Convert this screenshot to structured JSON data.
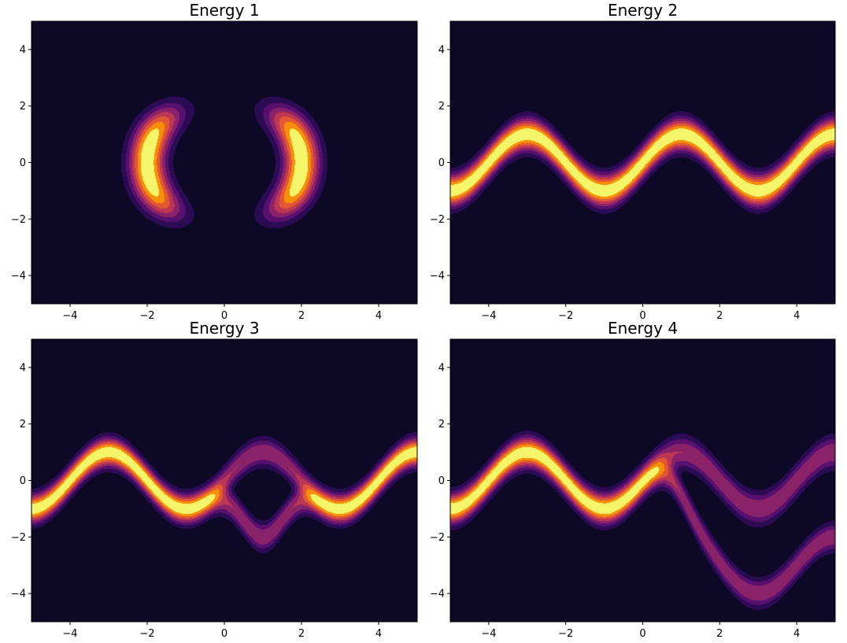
{
  "chart_data": [
    {
      "type": "contour",
      "title": "Energy 1",
      "xlabel": "",
      "ylabel": "",
      "xlim": [
        -5,
        5
      ],
      "ylim": [
        -5,
        5
      ],
      "x_ticks": [
        -4,
        -2,
        0,
        2,
        4
      ],
      "y_ticks": [
        -4,
        -2,
        0,
        2,
        4
      ],
      "grid": false,
      "colormap": "inferno",
      "levels": 8
    },
    {
      "type": "contour",
      "title": "Energy 2",
      "xlabel": "",
      "ylabel": "",
      "xlim": [
        -5,
        5
      ],
      "ylim": [
        -5,
        5
      ],
      "x_ticks": [
        -4,
        -2,
        0,
        2,
        4
      ],
      "y_ticks": [
        -4,
        -2,
        0,
        2,
        4
      ],
      "grid": false,
      "colormap": "inferno",
      "levels": 8
    },
    {
      "type": "contour",
      "title": "Energy 3",
      "xlabel": "",
      "ylabel": "",
      "xlim": [
        -5,
        5
      ],
      "ylim": [
        -5,
        5
      ],
      "x_ticks": [
        -4,
        -2,
        0,
        2,
        4
      ],
      "y_ticks": [
        -4,
        -2,
        0,
        2,
        4
      ],
      "grid": false,
      "colormap": "inferno",
      "levels": 8
    },
    {
      "type": "contour",
      "title": "Energy 4",
      "xlabel": "",
      "ylabel": "",
      "xlim": [
        -5,
        5
      ],
      "ylim": [
        -5,
        5
      ],
      "x_ticks": [
        -4,
        -2,
        0,
        2,
        4
      ],
      "y_ticks": [
        -4,
        -2,
        0,
        2,
        4
      ],
      "grid": false,
      "colormap": "inferno",
      "levels": 8
    }
  ],
  "colors": {
    "background": "#0c0826",
    "levels": [
      "#0c0826",
      "#2a0b54",
      "#57106e",
      "#8a226a",
      "#bc3754",
      "#e25734",
      "#f98e09",
      "#f5f56a"
    ]
  }
}
